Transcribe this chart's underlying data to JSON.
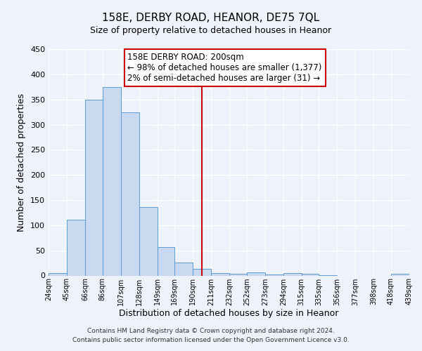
{
  "title": "158E, DERBY ROAD, HEANOR, DE75 7QL",
  "subtitle": "Size of property relative to detached houses in Heanor",
  "xlabel": "Distribution of detached houses by size in Heanor",
  "ylabel": "Number of detached properties",
  "bar_color": "#c9d9f0",
  "bar_edge_color": "#5b9bd5",
  "background_color": "#eef2fb",
  "grid_color": "#ffffff",
  "vline_x": 200,
  "vline_color": "#cc0000",
  "annotation_title": "158E DERBY ROAD: 200sqm",
  "annotation_line1": "← 98% of detached houses are smaller (1,377)",
  "annotation_line2": "2% of semi-detached houses are larger (31) →",
  "bin_edges": [
    24,
    45,
    66,
    86,
    107,
    128,
    149,
    169,
    190,
    211,
    232,
    252,
    273,
    294,
    315,
    335,
    356,
    377,
    398,
    418,
    439
  ],
  "bin_heights": [
    5,
    111,
    349,
    374,
    325,
    136,
    57,
    26,
    13,
    5,
    4,
    6,
    2,
    5,
    3,
    1,
    0,
    0,
    0,
    3
  ],
  "ylim": [
    0,
    450
  ],
  "yticks": [
    0,
    50,
    100,
    150,
    200,
    250,
    300,
    350,
    400,
    450
  ],
  "footer1": "Contains HM Land Registry data © Crown copyright and database right 2024.",
  "footer2": "Contains public sector information licensed under the Open Government Licence v3.0."
}
